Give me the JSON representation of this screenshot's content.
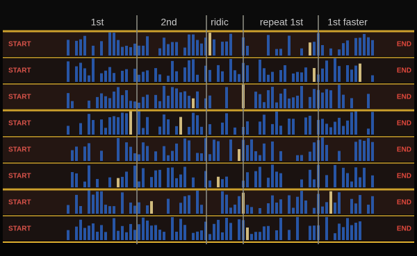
{
  "header": {
    "columns": [
      "1st",
      "2nd",
      "ridic",
      "repeat 1st",
      "1st faster"
    ]
  },
  "rows": [
    {
      "start": "START",
      "end": "END"
    },
    {
      "start": "START",
      "end": "END"
    },
    {
      "start": "START",
      "end": "END"
    },
    {
      "start": "START",
      "end": "END"
    },
    {
      "start": "START",
      "end": "END"
    },
    {
      "start": "START",
      "end": "END"
    },
    {
      "start": "START",
      "end": "END"
    },
    {
      "start": "START",
      "end": "END"
    }
  ]
}
